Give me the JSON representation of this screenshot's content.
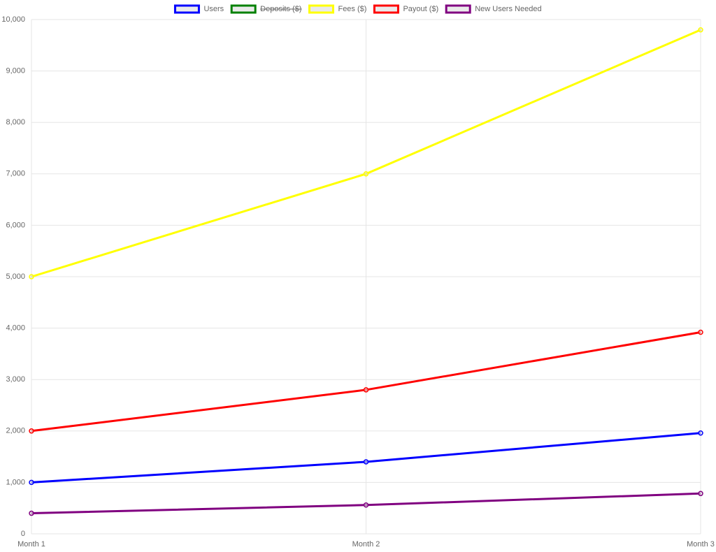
{
  "chart_data": {
    "type": "line",
    "categories": [
      "Month 1",
      "Month 2",
      "Month 3"
    ],
    "series": [
      {
        "name": "Users",
        "color": "#0000ff",
        "values": [
          1000,
          1400,
          1960
        ]
      },
      {
        "name": "Deposits ($)",
        "color": "#008000",
        "values": [
          null,
          null,
          null
        ],
        "hidden": true
      },
      {
        "name": "Fees ($)",
        "color": "#ffff00",
        "values": [
          5000,
          7000,
          9800
        ]
      },
      {
        "name": "Payout ($)",
        "color": "#ff0000",
        "values": [
          2000,
          2800,
          3920
        ]
      },
      {
        "name": "New Users Needed",
        "color": "#800080",
        "values": [
          400,
          560,
          784
        ]
      }
    ],
    "ylim": [
      0,
      10000
    ],
    "yticks": [
      0,
      {
        "value": 1000,
        "label": "1,000"
      },
      {
        "value": 2000,
        "label": "2,000"
      },
      {
        "value": 3000,
        "label": "3,000"
      },
      {
        "value": 4000,
        "label": "4,000"
      },
      {
        "value": 5000,
        "label": "5,000"
      },
      {
        "value": 6000,
        "label": "6,000"
      },
      {
        "value": 7000,
        "label": "7,000"
      },
      {
        "value": 8000,
        "label": "8,000"
      },
      {
        "value": 9000,
        "label": "9,000"
      },
      {
        "value": 10000,
        "label": "10,000"
      }
    ],
    "grid": true,
    "legend": "top"
  }
}
